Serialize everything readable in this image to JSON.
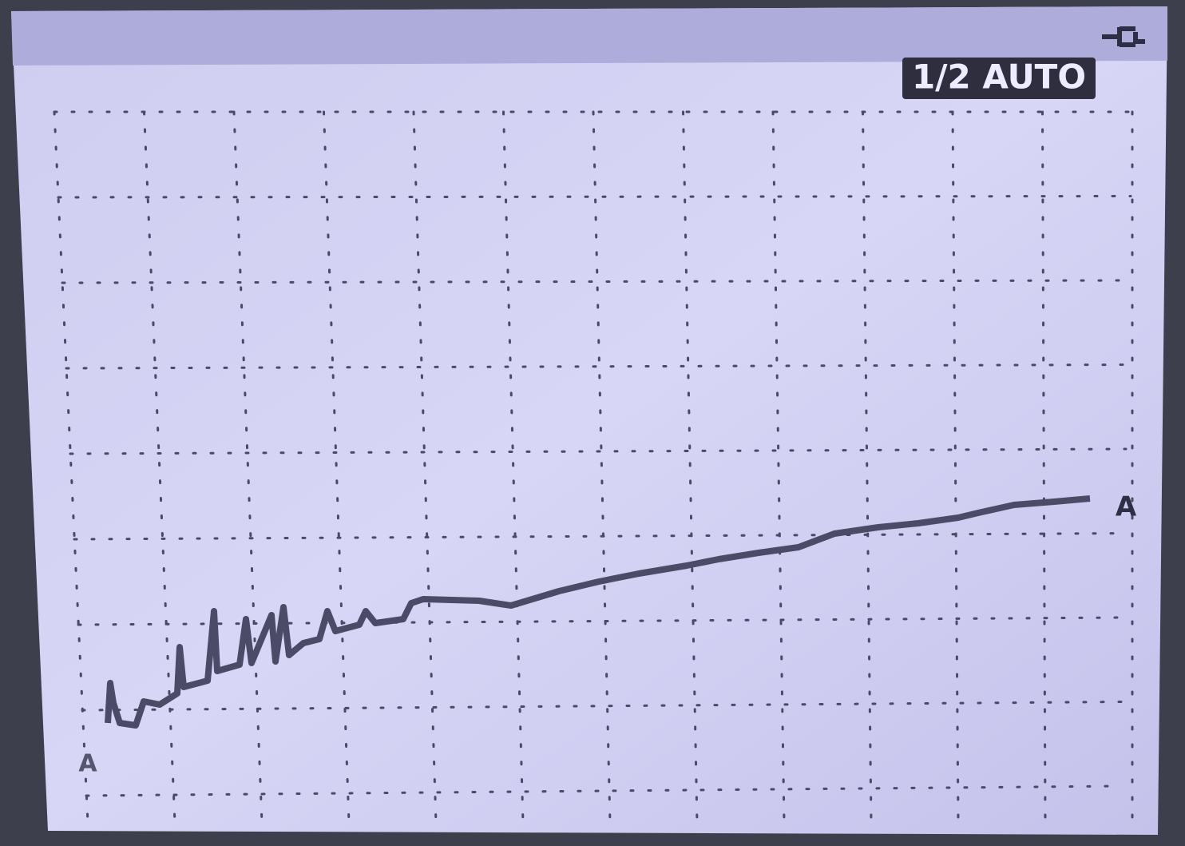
{
  "status": {
    "mode": "1/2 AUTO"
  },
  "trace": {
    "marker_right": "A",
    "marker_ground": "A"
  }
}
